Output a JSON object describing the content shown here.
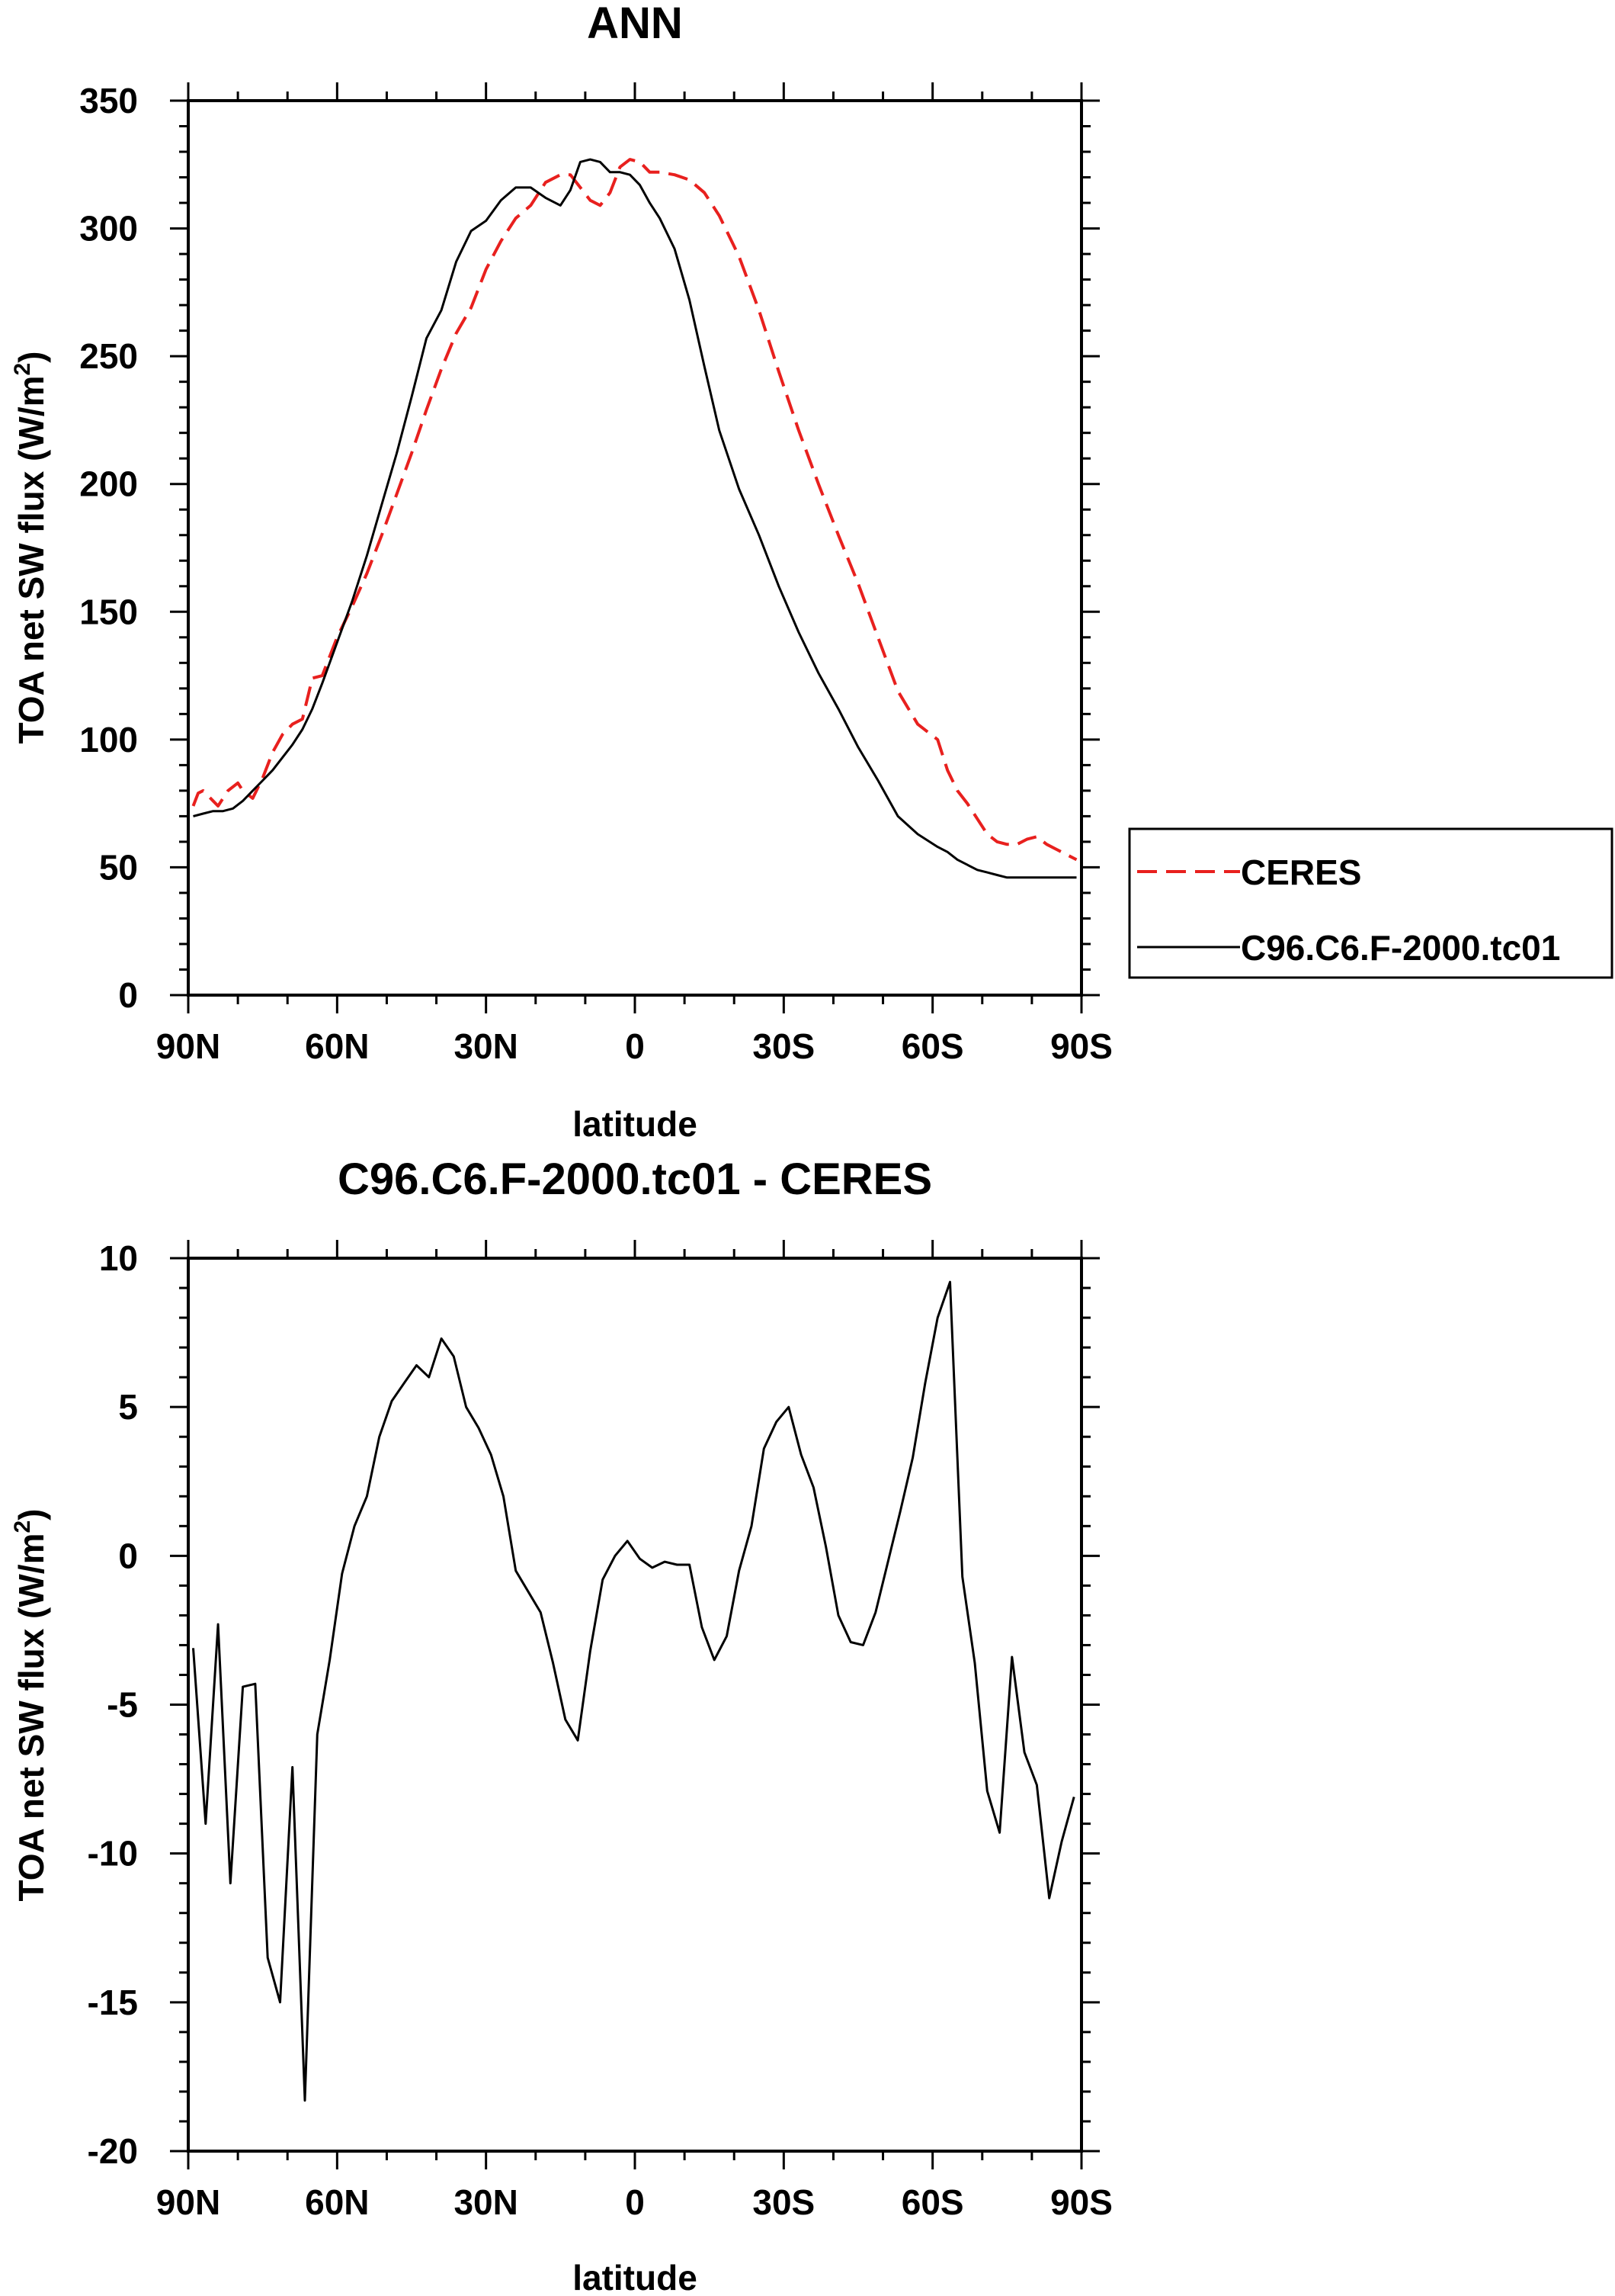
{
  "chart_data": [
    {
      "type": "line",
      "title": "ANN",
      "xlabel": "latitude",
      "ylabel_main": "TOA net SW flux (W/m",
      "ylabel_sup": "2",
      "ylabel_end": ")",
      "xlim": [
        90,
        -90
      ],
      "ylim": [
        0,
        350
      ],
      "xticks": [
        90,
        60,
        30,
        0,
        -30,
        -60,
        -90
      ],
      "xtick_labels": [
        "90N",
        "60N",
        "30N",
        "0",
        "30S",
        "60S",
        "90S"
      ],
      "yticks": [
        0,
        50,
        100,
        150,
        200,
        250,
        300,
        350
      ],
      "ytick_labels": [
        "0",
        "50",
        "100",
        "150",
        "200",
        "250",
        "300",
        "350"
      ],
      "legend_position": "right",
      "series": [
        {
          "name": "CERES",
          "color": "#e8201e",
          "dash": "dashed",
          "x": [
            89,
            88,
            87,
            85,
            84,
            82,
            80,
            79,
            77,
            75,
            73,
            71,
            69,
            67,
            65,
            63,
            60,
            57,
            54,
            51,
            48,
            45,
            42,
            39,
            36,
            33,
            30,
            27,
            24,
            21,
            18,
            15,
            13,
            11,
            9,
            7,
            5,
            3,
            1,
            -1,
            -3,
            -5,
            -8,
            -11,
            -14,
            -17,
            -21,
            -25,
            -29,
            -33,
            -37,
            -41,
            -45,
            -49,
            -53,
            -57,
            -61,
            -63,
            -65,
            -67,
            -69,
            -71,
            -73,
            -75,
            -77,
            -79,
            -81,
            -83,
            -85,
            -87,
            -89
          ],
          "y": [
            74,
            79,
            80,
            76,
            74,
            80,
            83,
            80,
            77,
            85,
            95,
            102,
            106,
            108,
            124,
            125,
            140,
            152,
            165,
            180,
            196,
            212,
            229,
            245,
            259,
            269,
            284,
            295,
            304,
            309,
            318,
            321,
            321,
            316,
            311,
            309,
            314,
            324,
            327,
            326,
            322,
            322,
            321,
            319,
            314,
            305,
            289,
            268,
            244,
            221,
            200,
            180,
            161,
            140,
            119,
            106,
            100,
            88,
            80,
            75,
            69,
            63,
            60,
            59,
            59,
            61,
            62,
            59,
            57,
            55,
            53
          ]
        },
        {
          "name": "C96.C6.F-2000.tc01",
          "color": "#000000",
          "dash": "solid",
          "x": [
            89,
            87,
            85,
            83,
            81,
            79,
            77,
            75,
            73,
            71,
            69,
            67,
            65,
            63,
            60,
            57,
            54,
            51,
            48,
            45,
            42,
            39,
            36,
            33,
            30,
            27,
            24,
            21,
            18,
            15,
            13,
            11,
            9,
            7,
            5,
            3,
            1,
            -1,
            -3,
            -5,
            -8,
            -11,
            -14,
            -17,
            -21,
            -25,
            -29,
            -33,
            -37,
            -41,
            -45,
            -49,
            -53,
            -57,
            -61,
            -63,
            -65,
            -67,
            -69,
            -71,
            -73,
            -75,
            -77,
            -79,
            -81,
            -83,
            -85,
            -87,
            -89
          ],
          "y": [
            70,
            71,
            72,
            72,
            73,
            76,
            80,
            84,
            88,
            93,
            98,
            104,
            112,
            122,
            138,
            154,
            172,
            192,
            212,
            234,
            257,
            268,
            287,
            299,
            303,
            311,
            316,
            316,
            312,
            309,
            315,
            326,
            327,
            326,
            322,
            322,
            321,
            317,
            310,
            304,
            292,
            272,
            246,
            221,
            198,
            180,
            160,
            142,
            126,
            112,
            97,
            84,
            70,
            63,
            58,
            56,
            53,
            51,
            49,
            48,
            47,
            46,
            46,
            46,
            46,
            46,
            46,
            46,
            46
          ]
        }
      ]
    },
    {
      "type": "line",
      "title": "C96.C6.F-2000.tc01 - CERES",
      "xlabel": "latitude",
      "ylabel_main": "TOA net SW flux (W/m",
      "ylabel_sup": "2",
      "ylabel_end": ")",
      "xlim": [
        90,
        -90
      ],
      "ylim": [
        -20,
        10
      ],
      "xticks": [
        90,
        60,
        30,
        0,
        -30,
        -60,
        -90
      ],
      "xtick_labels": [
        "90N",
        "60N",
        "30N",
        "0",
        "30S",
        "60S",
        "90S"
      ],
      "yticks": [
        -20,
        -15,
        -10,
        -5,
        0,
        5,
        10
      ],
      "ytick_labels": [
        "-20",
        "-15",
        "-10",
        "-5",
        "0",
        "5",
        "10"
      ],
      "series": [
        {
          "name": "C96.C6.F-2000.tc01 - CERES",
          "color": "#000000",
          "dash": "solid",
          "x": [
            89,
            86.5,
            84,
            81.5,
            79,
            76.5,
            74,
            71.5,
            69,
            66.5,
            64,
            61.5,
            59,
            56.5,
            54,
            51.5,
            49,
            46.5,
            44,
            41.5,
            39,
            36.5,
            34,
            31.5,
            29,
            26.5,
            24,
            21.5,
            19,
            16.5,
            14,
            11.5,
            9,
            6.5,
            4,
            1.5,
            -1,
            -3.5,
            -6,
            -8.5,
            -11,
            -13.5,
            -16,
            -18.5,
            -21,
            -23.5,
            -26,
            -28.5,
            -31,
            -33.5,
            -36,
            -38.5,
            -41,
            -43.5,
            -46,
            -48.5,
            -51,
            -53.5,
            -56,
            -58.5,
            -61,
            -63.5,
            -66,
            -68.5,
            -71,
            -73.5,
            -76,
            -78.5,
            -81,
            -83.5,
            -86,
            -88.5
          ],
          "y": [
            -3.1,
            -9.0,
            -2.3,
            -11.0,
            -4.4,
            -4.3,
            -13.5,
            -15.0,
            -7.1,
            -18.3,
            -6.0,
            -3.5,
            -0.6,
            1.0,
            2.0,
            4.0,
            5.2,
            5.8,
            6.4,
            6.0,
            7.3,
            6.7,
            5.0,
            4.3,
            3.4,
            2.0,
            -0.5,
            -1.2,
            -1.9,
            -3.6,
            -5.5,
            -6.2,
            -3.2,
            -0.8,
            0.0,
            0.5,
            -0.1,
            -0.4,
            -0.2,
            -0.3,
            -0.3,
            -2.4,
            -3.5,
            -2.7,
            -0.5,
            1.0,
            3.6,
            4.5,
            5.0,
            3.4,
            2.3,
            0.3,
            -2.0,
            -2.9,
            -3.0,
            -1.9,
            -0.2,
            1.5,
            3.3,
            5.8,
            8.0,
            9.2,
            -0.7,
            -3.6,
            -7.9,
            -9.3,
            -3.4,
            -6.6,
            -7.7,
            -11.5,
            -9.6,
            -8.1
          ]
        }
      ]
    }
  ]
}
